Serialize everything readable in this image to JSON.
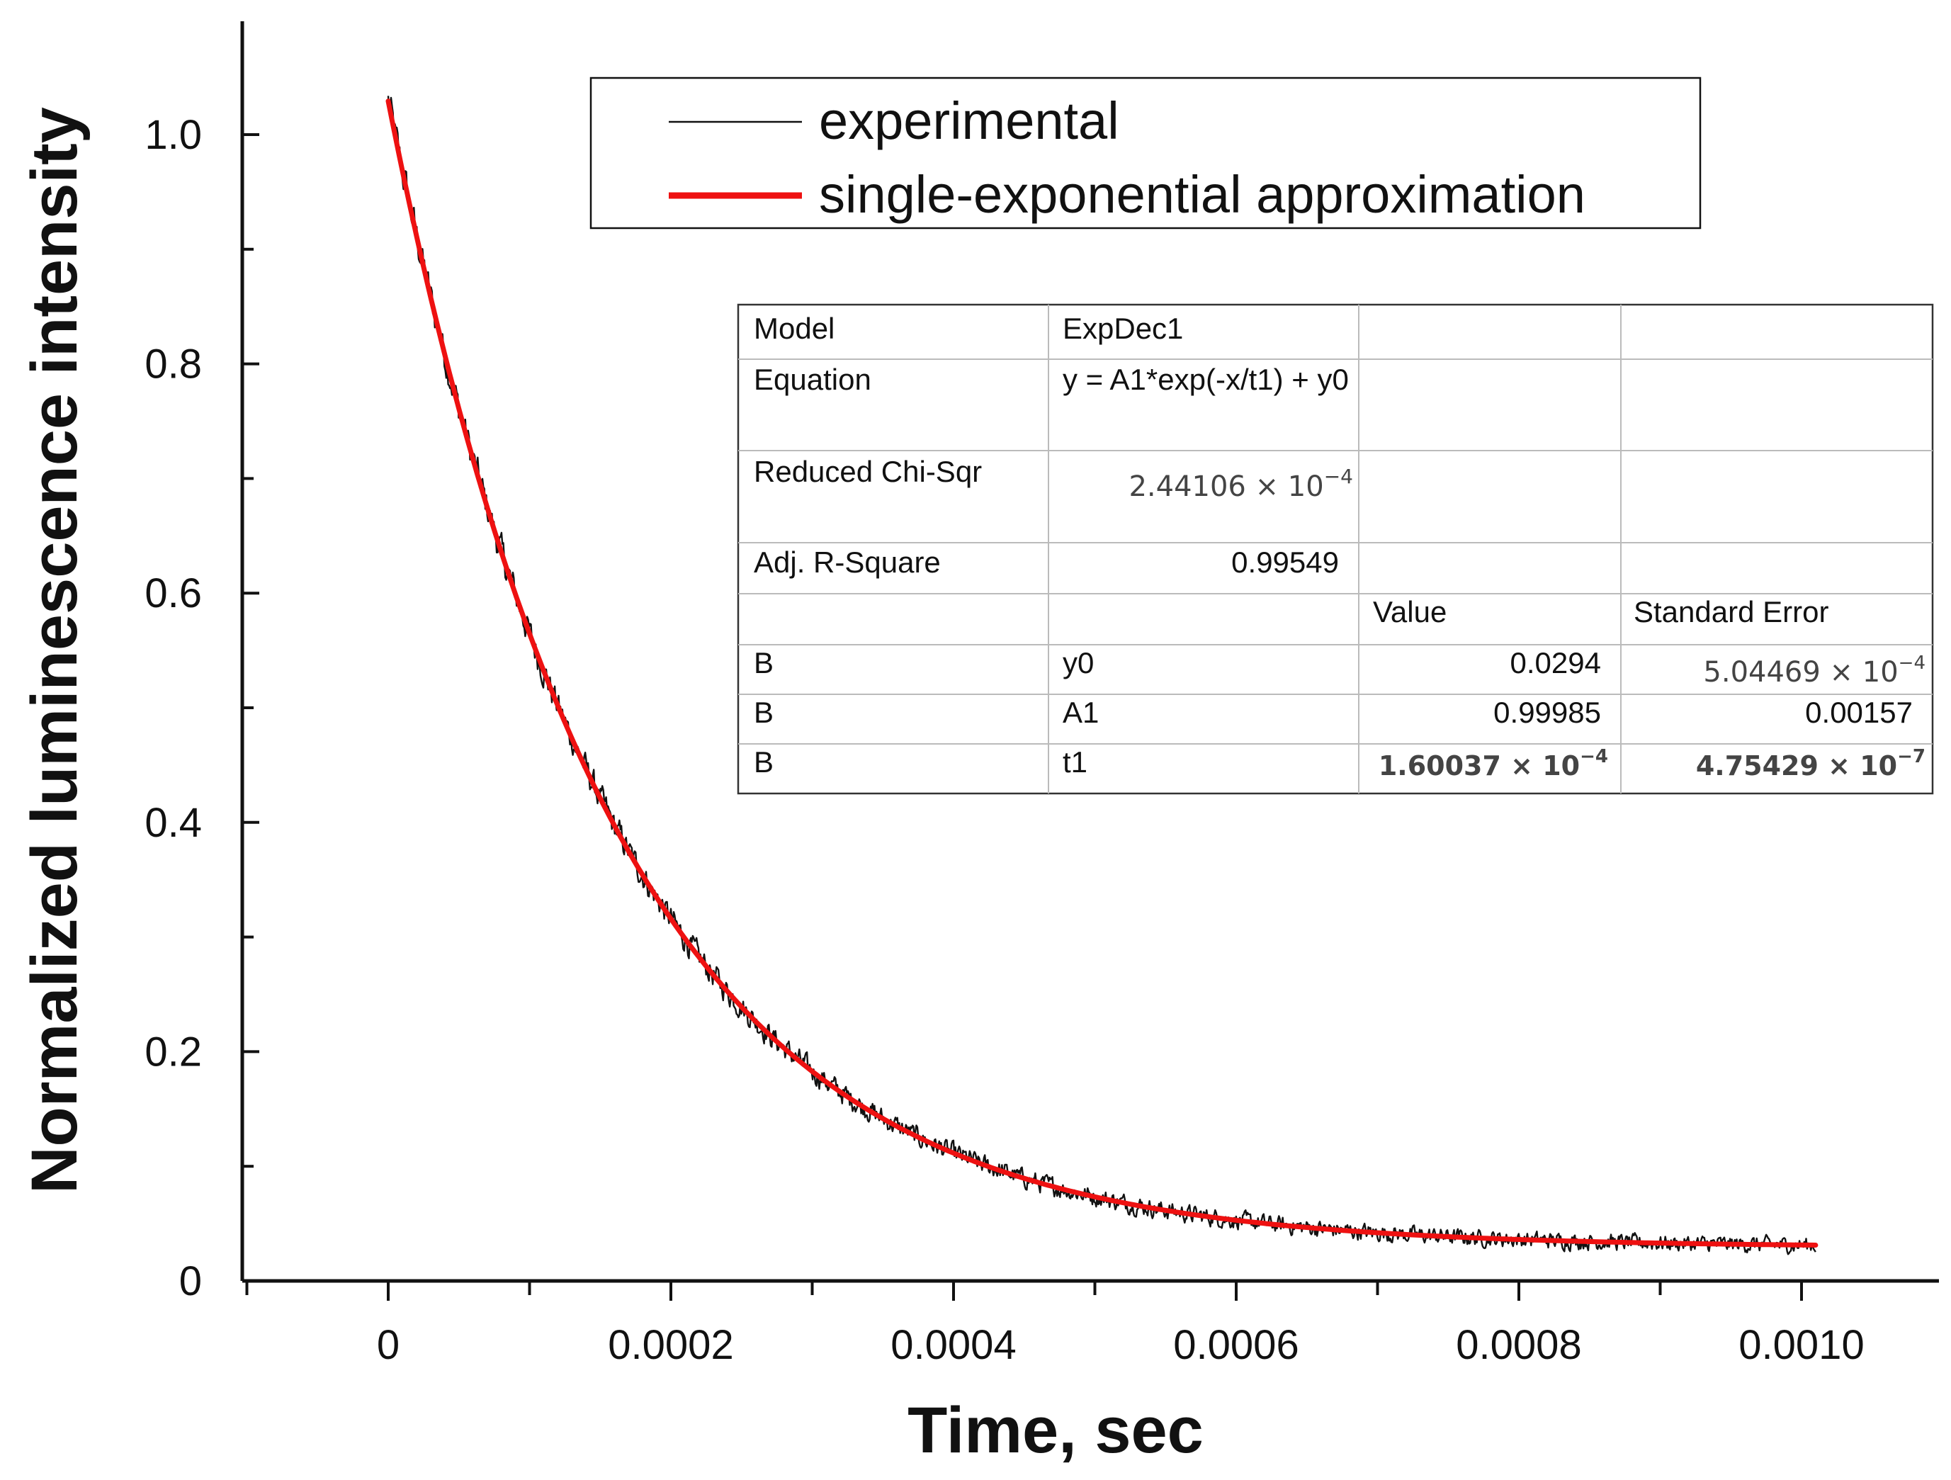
{
  "chart_data": {
    "type": "line",
    "title": "",
    "xlabel": "Time, sec",
    "ylabel": "Normalized luminescence intensity",
    "xlim": [
      -0.0001,
      0.0011
    ],
    "ylim": [
      0,
      1.09
    ],
    "x_ticks": [
      0,
      0.0002,
      0.0004,
      0.0006,
      0.0008,
      0.001
    ],
    "x_tick_labels": [
      "0",
      "0.0002",
      "0.0004",
      "0.0006",
      "0.0008",
      "0.0010"
    ],
    "y_ticks": [
      0,
      0.2,
      0.4,
      0.6,
      0.8,
      1.0
    ],
    "y_tick_labels": [
      "0",
      "0.2",
      "0.4",
      "0.6",
      "0.8",
      "1.0"
    ],
    "grid": false,
    "legend_position": "top-right",
    "series": [
      {
        "name": "experimental",
        "color": "#111111",
        "style": "noisy-thin",
        "x_start": 0,
        "x_end": 0.00101,
        "model": {
          "A1": 0.99985,
          "t1": 0.000160037,
          "y0": 0.0294
        },
        "noise_amplitude": 0.012
      },
      {
        "name": "single-exponential approximation",
        "color": "#ee1111",
        "style": "smooth-thick",
        "x_start": 0,
        "x_end": 0.00101,
        "model": {
          "A1": 0.99985,
          "t1": 0.000160037,
          "y0": 0.0294
        }
      }
    ],
    "fit_table": {
      "header_rows": [
        {
          "label": "Model",
          "value": "ExpDec1"
        },
        {
          "label": "Equation",
          "value": "y = A1*exp(-x/t1) + y0"
        },
        {
          "label": "Reduced Chi-Sqr",
          "value_mantissa": "2.44106 × 10",
          "value_exp": "−4"
        },
        {
          "label": "Adj. R-Square",
          "value": "0.99549"
        }
      ],
      "column_headers": {
        "value": "Value",
        "error": "Standard Error"
      },
      "params": [
        {
          "group": "B",
          "name": "y0",
          "value": "0.0294",
          "error_mantissa": "5.04469 × 10",
          "error_exp": "−4"
        },
        {
          "group": "B",
          "name": "A1",
          "value": "0.99985",
          "error": "0.00157"
        },
        {
          "group": "B",
          "name": "t1",
          "value_mantissa": "1.60037 × 10",
          "value_exp": "−4",
          "error_mantissa": "4.75429 × 10",
          "error_exp": "−7"
        }
      ]
    }
  }
}
